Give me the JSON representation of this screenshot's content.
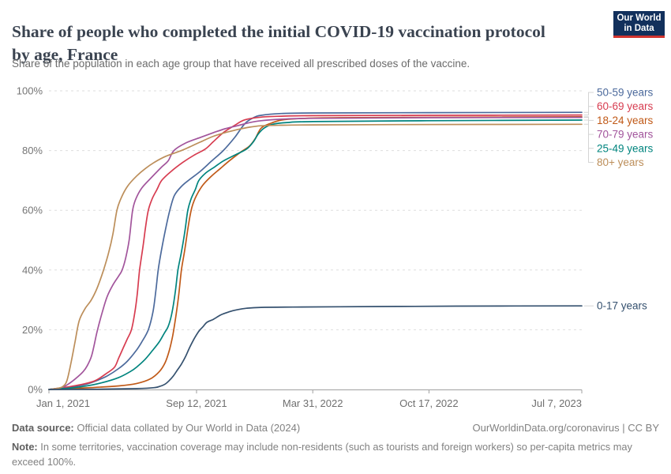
{
  "logo": {
    "line1": "Our World",
    "line2": "in Data",
    "bg_color": "#12305c",
    "accent_color": "#d1342f"
  },
  "header": {
    "title": "Share of people who completed the initial COVID-19 vaccination protocol by age, France",
    "subtitle": "Share of the population in each age group that have received all prescribed doses of the vaccine."
  },
  "chart_data": {
    "type": "line",
    "title": "Share of people who completed the initial COVID-19 vaccination protocol by age, France",
    "subtitle": "Share of the population in each age group that have received all prescribed doses of the vaccine.",
    "xlabel": "",
    "ylabel": "",
    "legend_position": "right",
    "grid": "dashed-horizontal",
    "x_axis": {
      "start_date": "Jan 1, 2021",
      "end_date": "Jul 7, 2023",
      "range_days": [
        0,
        917
      ],
      "ticks": [
        {
          "label": "Jan 1, 2021",
          "day": 0
        },
        {
          "label": "Sep 12, 2021",
          "day": 254
        },
        {
          "label": "Mar 31, 2022",
          "day": 454
        },
        {
          "label": "Oct 17, 2022",
          "day": 654
        },
        {
          "label": "Jul 7, 2023",
          "day": 917
        }
      ]
    },
    "y_axis": {
      "unit": "%",
      "lim": [
        0,
        100
      ],
      "ticks": [
        {
          "label": "0%",
          "value": 0
        },
        {
          "label": "20%",
          "value": 20
        },
        {
          "label": "40%",
          "value": 40
        },
        {
          "label": "60%",
          "value": 60
        },
        {
          "label": "80%",
          "value": 80
        },
        {
          "label": "100%",
          "value": 100
        }
      ]
    },
    "series": [
      {
        "name": "50-59 years",
        "color": "#4C6A9C",
        "final_value": 92.8,
        "points": [
          [
            0,
            0
          ],
          [
            31,
            0.6
          ],
          [
            59,
            1.5
          ],
          [
            80,
            2.8
          ],
          [
            100,
            4.5
          ],
          [
            120,
            7
          ],
          [
            135,
            9.5
          ],
          [
            150,
            13
          ],
          [
            160,
            16
          ],
          [
            171,
            20
          ],
          [
            179,
            26
          ],
          [
            184,
            33
          ],
          [
            188,
            40
          ],
          [
            194,
            47
          ],
          [
            200,
            53
          ],
          [
            208,
            60
          ],
          [
            216,
            65
          ],
          [
            228,
            68
          ],
          [
            240,
            70
          ],
          [
            260,
            73
          ],
          [
            280,
            76.5
          ],
          [
            300,
            80
          ],
          [
            320,
            84.5
          ],
          [
            337,
            89
          ],
          [
            352,
            91
          ],
          [
            365,
            91.8
          ],
          [
            400,
            92.4
          ],
          [
            454,
            92.6
          ],
          [
            650,
            92.7
          ],
          [
            917,
            92.8
          ]
        ]
      },
      {
        "name": "60-69 years",
        "color": "#D73C50",
        "final_value": 91.9,
        "points": [
          [
            0,
            0
          ],
          [
            31,
            0.8
          ],
          [
            59,
            1.8
          ],
          [
            80,
            3
          ],
          [
            100,
            5.5
          ],
          [
            113,
            7.5
          ],
          [
            120,
            10.5
          ],
          [
            128,
            14
          ],
          [
            135,
            17
          ],
          [
            142,
            20
          ],
          [
            148,
            26
          ],
          [
            152,
            32
          ],
          [
            156,
            40
          ],
          [
            162,
            48
          ],
          [
            166,
            54
          ],
          [
            171,
            60
          ],
          [
            178,
            64
          ],
          [
            186,
            67
          ],
          [
            194,
            70
          ],
          [
            210,
            73
          ],
          [
            230,
            76
          ],
          [
            250,
            78.5
          ],
          [
            269,
            80.5
          ],
          [
            283,
            83
          ],
          [
            300,
            86
          ],
          [
            320,
            88.5
          ],
          [
            337,
            90.3
          ],
          [
            365,
            91.2
          ],
          [
            400,
            91.5
          ],
          [
            454,
            91.7
          ],
          [
            650,
            91.8
          ],
          [
            917,
            91.9
          ]
        ]
      },
      {
        "name": "18-24 years",
        "color": "#C05917",
        "final_value": 91.3,
        "points": [
          [
            0,
            0
          ],
          [
            59,
            0.5
          ],
          [
            120,
            1.2
          ],
          [
            151,
            2
          ],
          [
            174,
            3.5
          ],
          [
            190,
            6
          ],
          [
            200,
            9
          ],
          [
            207,
            13
          ],
          [
            213,
            18
          ],
          [
            218,
            24
          ],
          [
            223,
            31
          ],
          [
            228,
            40
          ],
          [
            234,
            47
          ],
          [
            240,
            55
          ],
          [
            246,
            61
          ],
          [
            254,
            65
          ],
          [
            265,
            68.5
          ],
          [
            280,
            71.5
          ],
          [
            295,
            74
          ],
          [
            310,
            76.5
          ],
          [
            330,
            79.5
          ],
          [
            345,
            81.5
          ],
          [
            355,
            84
          ],
          [
            365,
            87.5
          ],
          [
            380,
            89
          ],
          [
            400,
            90.2
          ],
          [
            430,
            90.7
          ],
          [
            500,
            91
          ],
          [
            730,
            91.2
          ],
          [
            917,
            91.3
          ]
        ]
      },
      {
        "name": "70-79 years",
        "color": "#A2559C",
        "final_value": 91.1,
        "points": [
          [
            0,
            0
          ],
          [
            20,
            0.5
          ],
          [
            31,
            1.5
          ],
          [
            45,
            3.5
          ],
          [
            59,
            6
          ],
          [
            66,
            8
          ],
          [
            73,
            11
          ],
          [
            78,
            15
          ],
          [
            83,
            19.5
          ],
          [
            92,
            26
          ],
          [
            100,
            31
          ],
          [
            110,
            35
          ],
          [
            120,
            38
          ],
          [
            126,
            40
          ],
          [
            132,
            44
          ],
          [
            138,
            50
          ],
          [
            144,
            60
          ],
          [
            150,
            64
          ],
          [
            160,
            67.5
          ],
          [
            174,
            70.5
          ],
          [
            194,
            74.5
          ],
          [
            205,
            76.5
          ],
          [
            215,
            80
          ],
          [
            235,
            82.5
          ],
          [
            262,
            84.5
          ],
          [
            283,
            86
          ],
          [
            303,
            87.3
          ],
          [
            324,
            88.3
          ],
          [
            344,
            89.3
          ],
          [
            365,
            90
          ],
          [
            400,
            90.5
          ],
          [
            454,
            90.8
          ],
          [
            650,
            91
          ],
          [
            917,
            91.1
          ]
        ]
      },
      {
        "name": "25-49 years",
        "color": "#00847E",
        "final_value": 90.2,
        "points": [
          [
            0,
            0
          ],
          [
            31,
            0.4
          ],
          [
            59,
            1
          ],
          [
            90,
            2.2
          ],
          [
            120,
            4
          ],
          [
            140,
            6
          ],
          [
            151,
            7.5
          ],
          [
            165,
            10
          ],
          [
            178,
            13
          ],
          [
            190,
            16
          ],
          [
            199,
            19
          ],
          [
            205,
            21
          ],
          [
            211,
            25
          ],
          [
            217,
            32
          ],
          [
            222,
            40
          ],
          [
            228,
            46
          ],
          [
            234,
            53
          ],
          [
            239,
            60
          ],
          [
            245,
            64
          ],
          [
            252,
            67
          ],
          [
            258,
            70
          ],
          [
            270,
            72.5
          ],
          [
            285,
            74.5
          ],
          [
            300,
            76.5
          ],
          [
            320,
            78.5
          ],
          [
            340,
            80.5
          ],
          [
            352,
            83
          ],
          [
            360,
            85.5
          ],
          [
            370,
            87.5
          ],
          [
            385,
            88.8
          ],
          [
            410,
            89.4
          ],
          [
            454,
            89.7
          ],
          [
            650,
            90
          ],
          [
            917,
            90.2
          ]
        ]
      },
      {
        "name": "80+ years",
        "color": "#BC8E5A",
        "final_value": 88.8,
        "points": [
          [
            0,
            0
          ],
          [
            15,
            0.4
          ],
          [
            24,
            1
          ],
          [
            31,
            3
          ],
          [
            38,
            9
          ],
          [
            45,
            16
          ],
          [
            52,
            23
          ],
          [
            62,
            27
          ],
          [
            73,
            30
          ],
          [
            83,
            34
          ],
          [
            94,
            40
          ],
          [
            103,
            46
          ],
          [
            110,
            52
          ],
          [
            117,
            60
          ],
          [
            124,
            64
          ],
          [
            135,
            68
          ],
          [
            151,
            71.5
          ],
          [
            166,
            74
          ],
          [
            181,
            76
          ],
          [
            200,
            78
          ],
          [
            228,
            80
          ],
          [
            243,
            81.3
          ],
          [
            262,
            83
          ],
          [
            283,
            84.8
          ],
          [
            303,
            86
          ],
          [
            324,
            87
          ],
          [
            344,
            87.8
          ],
          [
            365,
            88.3
          ],
          [
            400,
            88.5
          ],
          [
            454,
            88.6
          ],
          [
            600,
            88.7
          ],
          [
            917,
            88.8
          ]
        ]
      },
      {
        "name": "0-17 years",
        "color": "#35516F",
        "final_value": 28,
        "points": [
          [
            0,
            0
          ],
          [
            90,
            0.1
          ],
          [
            151,
            0.3
          ],
          [
            181,
            0.6
          ],
          [
            190,
            1
          ],
          [
            200,
            1.8
          ],
          [
            207,
            3
          ],
          [
            214,
            4.5
          ],
          [
            221,
            6.5
          ],
          [
            228,
            8.5
          ],
          [
            235,
            11
          ],
          [
            242,
            14
          ],
          [
            250,
            17
          ],
          [
            258,
            19.5
          ],
          [
            265,
            21
          ],
          [
            272,
            22.5
          ],
          [
            283,
            23.5
          ],
          [
            296,
            25
          ],
          [
            310,
            26
          ],
          [
            324,
            26.7
          ],
          [
            340,
            27.2
          ],
          [
            365,
            27.5
          ],
          [
            420,
            27.6
          ],
          [
            500,
            27.7
          ],
          [
            600,
            27.8
          ],
          [
            700,
            27.9
          ],
          [
            917,
            28
          ]
        ]
      }
    ]
  },
  "footer": {
    "datasource_label": "Data source:",
    "datasource_text": "Official data collated by Our World in Data (2024)",
    "link": "OurWorldinData.org/coronavirus | CC BY",
    "note_label": "Note:",
    "note_text": "In some territories, vaccination coverage may include non-residents (such as tourists and foreign workers) so per-capita metrics may exceed 100%."
  }
}
